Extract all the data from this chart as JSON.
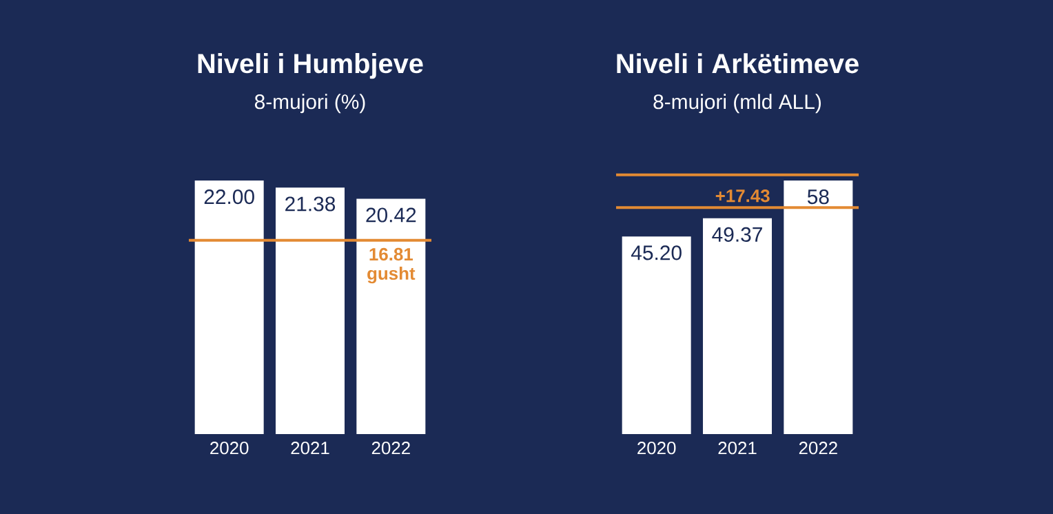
{
  "chart_data": [
    {
      "type": "bar",
      "title": "Niveli i Humbjeve",
      "subtitle": "8-mujori (%)",
      "categories": [
        "2020",
        "2021",
        "2022"
      ],
      "series": [
        {
          "color": "#ffffff",
          "values": [
            22.0,
            21.38,
            20.42
          ],
          "value_labels": [
            "22.00",
            "21.38",
            "20.42"
          ]
        }
      ],
      "ref_lines": [
        {
          "axis": "y",
          "value": 16.81,
          "label": "16.81 gusht",
          "color": "#e38a33"
        }
      ]
    },
    {
      "type": "bar",
      "title": "Niveli i Arkëtimeve",
      "subtitle": "8-mujori (mld ALL)",
      "categories": [
        "2020",
        "2021",
        "2022"
      ],
      "series": [
        {
          "color": "#ffffff",
          "values": [
            45.2,
            49.37,
            58
          ],
          "value_labels": [
            "45.20",
            "49.37",
            "58"
          ]
        }
      ],
      "ref_lines": [
        {
          "axis": "y",
          "value": 51.8,
          "color": "#e38a33"
        },
        {
          "axis": "y",
          "value": 59.3,
          "color": "#e38a33"
        }
      ],
      "annotations": [
        "+17.43"
      ]
    }
  ]
}
